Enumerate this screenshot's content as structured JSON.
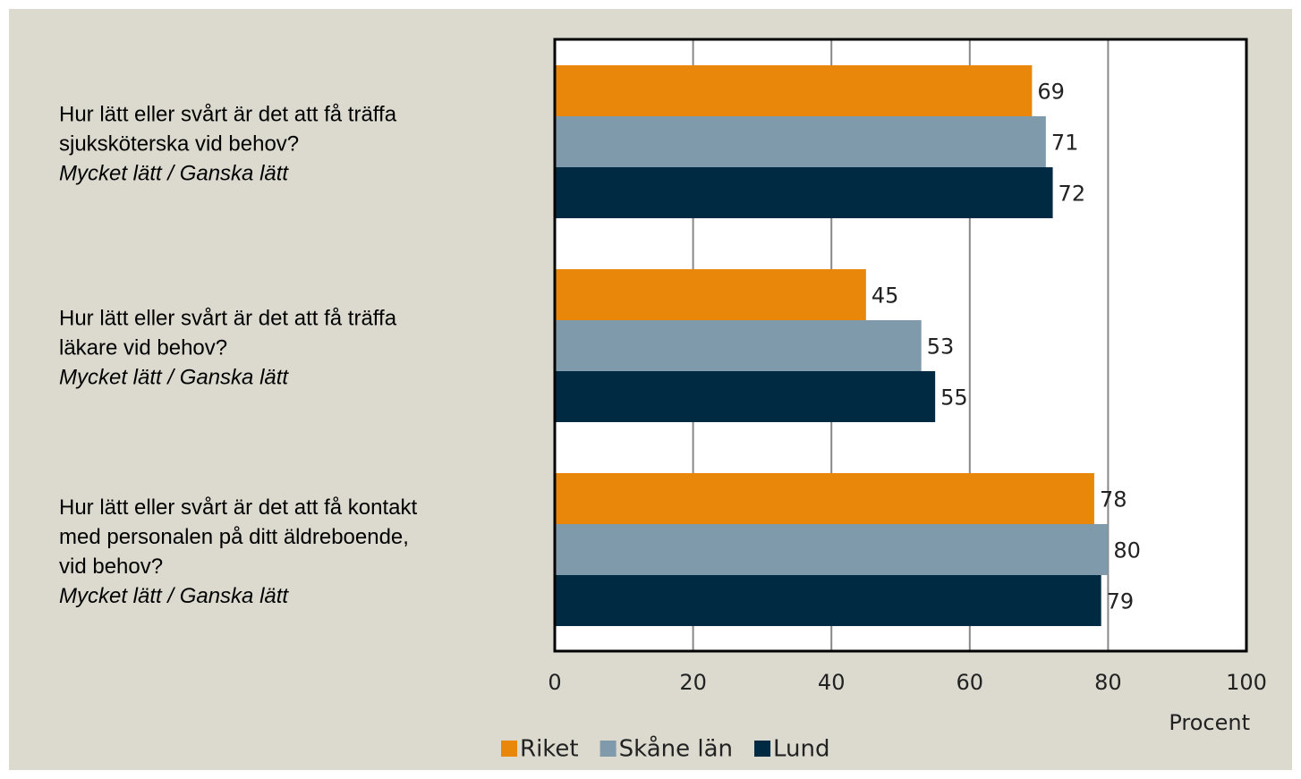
{
  "chart_data": {
    "type": "hbar",
    "categories": [
      [
        "Hur lätt eller svårt är det att få träffa",
        "sjuksköterska vid behov?",
        "Mycket lätt / Ganska lätt"
      ],
      [
        "Hur lätt eller svårt är det att få träffa",
        "läkare vid behov?",
        "Mycket lätt / Ganska lätt"
      ],
      [
        "Hur lätt eller svårt är det att få kontakt",
        "med personalen på ditt äldreboende,",
        "vid behov?",
        "Mycket lätt / Ganska lätt"
      ]
    ],
    "series": [
      {
        "name": "Riket",
        "color": "#e8870a",
        "values": [
          69,
          45,
          78
        ]
      },
      {
        "name": "Skåne län",
        "color": "#7f9aaa",
        "values": [
          71,
          53,
          80
        ]
      },
      {
        "name": "Lund",
        "color": "#002a42",
        "values": [
          72,
          55,
          79
        ]
      }
    ],
    "xlabel": "Procent",
    "xlim": [
      0,
      100
    ],
    "xticks": [
      0,
      20,
      40,
      60,
      80,
      100
    ],
    "grid": true,
    "legend": "bottom"
  }
}
